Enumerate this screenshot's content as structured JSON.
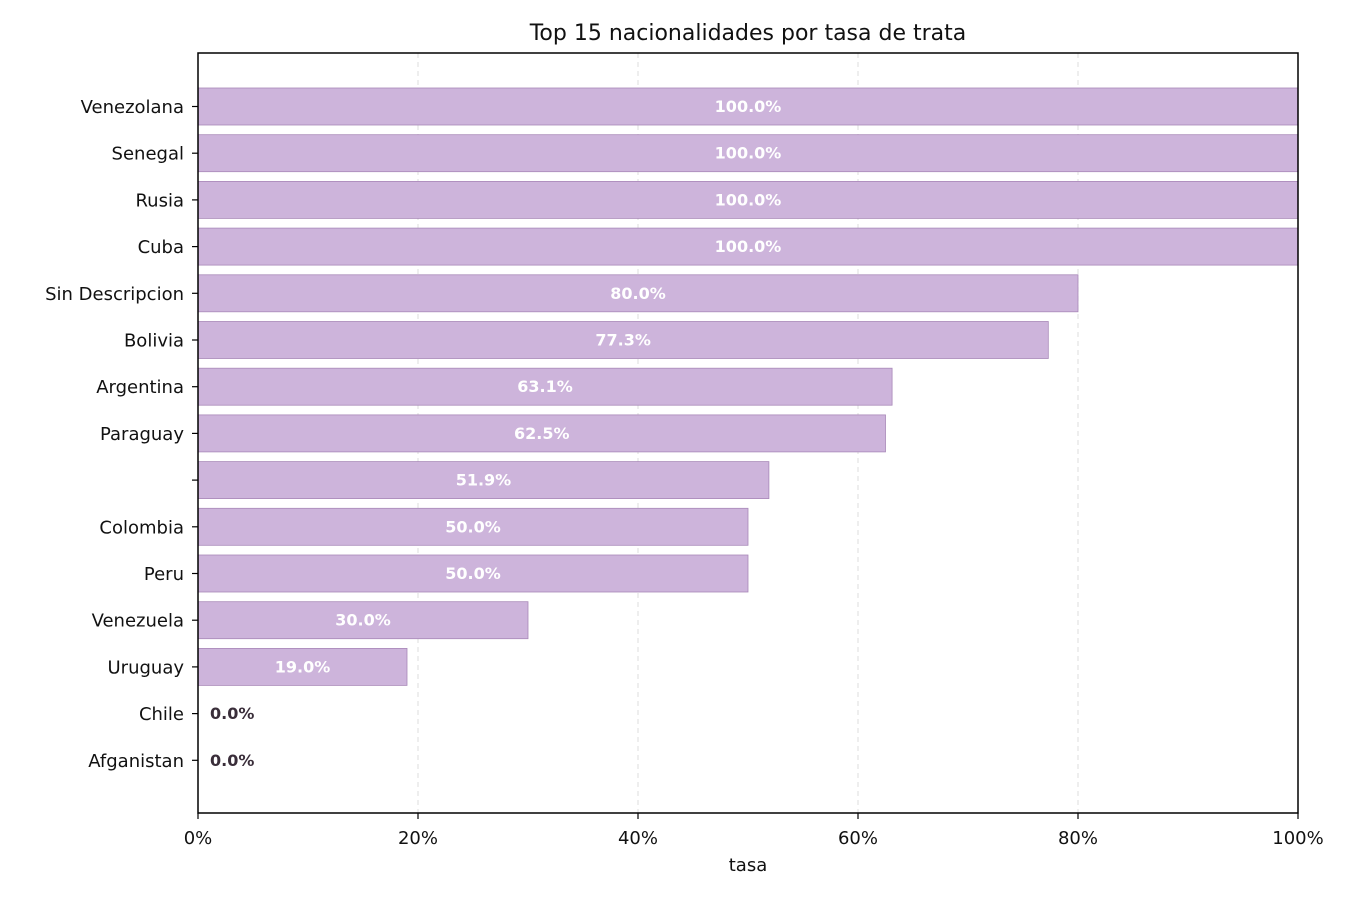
{
  "chart_data": {
    "type": "bar",
    "orientation": "horizontal",
    "title": "Top 15 nacionalidades por tasa de trata",
    "xlabel": "tasa",
    "ylabel": "",
    "xlim": [
      0,
      1
    ],
    "x_tick_values": [
      0,
      0.2,
      0.4,
      0.6,
      0.8,
      1.0
    ],
    "x_tick_labels": [
      "0%",
      "20%",
      "40%",
      "60%",
      "80%",
      "100%"
    ],
    "grid": "vertical dashed",
    "bar_color": "#cdb4db",
    "bar_edge_color": "#a888b8",
    "label_color_inside": "#ffffff",
    "label_color_outside": "#3a2e3a",
    "categories": [
      "Venezolana",
      "Senegal",
      "Rusia",
      "Cuba",
      "Sin Descripcion",
      "Bolivia",
      "Argentina",
      "Paraguay",
      "",
      "Colombia",
      "Peru",
      "Venezuela",
      "Uruguay",
      "Chile",
      "Afganistan"
    ],
    "values": [
      1.0,
      1.0,
      1.0,
      1.0,
      0.8,
      0.773,
      0.631,
      0.625,
      0.519,
      0.5,
      0.5,
      0.3,
      0.19,
      0.0,
      0.0
    ],
    "value_labels": [
      "100.0%",
      "100.0%",
      "100.0%",
      "100.0%",
      "80.0%",
      "77.3%",
      "63.1%",
      "62.5%",
      "51.9%",
      "50.0%",
      "50.0%",
      "30.0%",
      "19.0%",
      "0.0%",
      "0.0%"
    ]
  }
}
